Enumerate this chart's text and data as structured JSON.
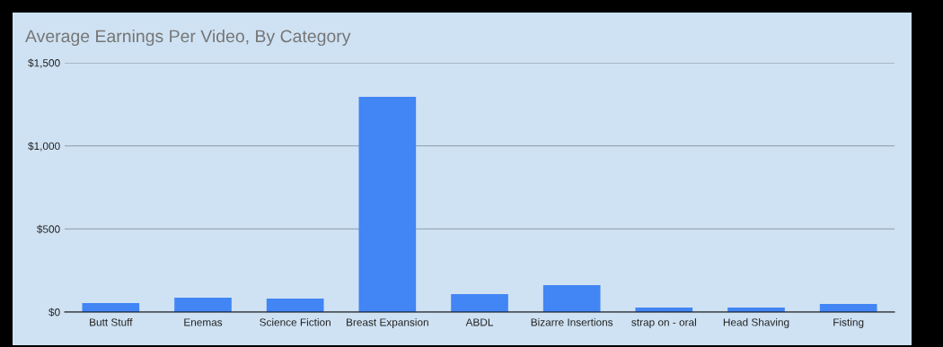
{
  "chart_data": {
    "type": "bar",
    "title": "Average Earnings Per Video, By Category",
    "categories": [
      "Butt Stuff",
      "Enemas",
      "Science Fiction",
      "Breast Expansion",
      "ABDL",
      "Bizarre Insertions",
      "strap on - oral",
      "Head Shaving",
      "Fisting"
    ],
    "values": [
      54,
      86,
      81,
      1295,
      108,
      162,
      27,
      27,
      49
    ],
    "color": "#4285f4",
    "ylim": [
      0,
      1500
    ],
    "yticks": [
      {
        "value": 0,
        "label": "$0"
      },
      {
        "value": 500,
        "label": "$500"
      },
      {
        "value": 1000,
        "label": "$1,000"
      },
      {
        "value": 1500,
        "label": "$1,500"
      }
    ],
    "grid": "y"
  }
}
